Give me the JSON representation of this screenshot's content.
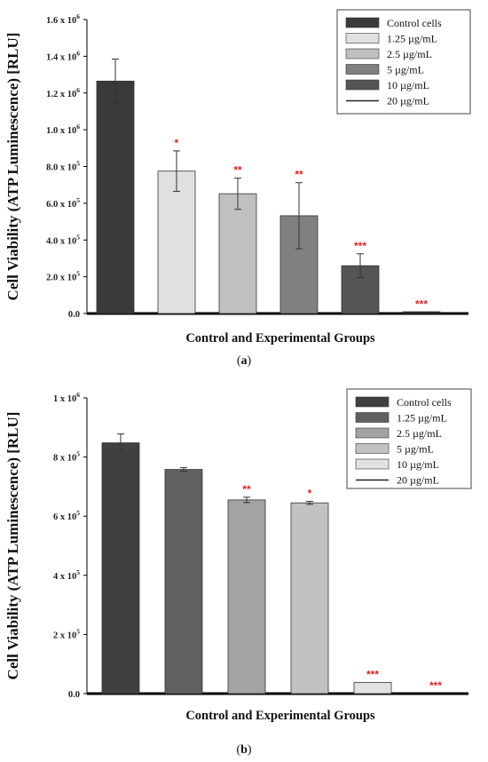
{
  "chart_data": [
    {
      "type": "bar",
      "panel": "a",
      "xlabel": "Control and Experimental Groups",
      "ylabel": "Cell Viability (ATP Luminescence) [RLU]",
      "ylim": [
        0,
        1600000
      ],
      "yticks": [
        {
          "value": 0,
          "label": "0.0"
        },
        {
          "value": 200000,
          "label": "2.0 x 10",
          "exp": "5"
        },
        {
          "value": 400000,
          "label": "4.0 x 10",
          "exp": "5"
        },
        {
          "value": 600000,
          "label": "6.0 x 10",
          "exp": "5"
        },
        {
          "value": 800000,
          "label": "8.0 x 10",
          "exp": "5"
        },
        {
          "value": 1000000,
          "label": "1.0 x 10",
          "exp": "6"
        },
        {
          "value": 1200000,
          "label": "1.2 x 10",
          "exp": "6"
        },
        {
          "value": 1400000,
          "label": "1.4 x 10",
          "exp": "6"
        },
        {
          "value": 1600000,
          "label": "1.6 x 10",
          "exp": "6"
        }
      ],
      "legend_position": "top-right",
      "categories": [
        "Control cells",
        "1.25 µg/mL",
        "2.5 µg/mL",
        "5 µg/mL",
        "10 µg/mL",
        "20 µg/mL"
      ],
      "values": [
        1265000,
        775000,
        652000,
        532000,
        260000,
        8000
      ],
      "errors": [
        120000,
        110000,
        85000,
        180000,
        65000,
        0
      ],
      "significance": [
        "",
        "*",
        "**",
        "**",
        "***",
        "***"
      ],
      "colors": [
        "#3a3a3a",
        "#e0e0e0",
        "#c0c0c0",
        "#808080",
        "#555555",
        "#222222"
      ]
    },
    {
      "type": "bar",
      "panel": "b",
      "xlabel": "Control and Experimental Groups",
      "ylabel": "Cell Viability (ATP Luminescence) [RLU]",
      "ylim": [
        0,
        1000000
      ],
      "yticks": [
        {
          "value": 0,
          "label": "0.0"
        },
        {
          "value": 200000,
          "label": "2 x 10",
          "exp": "5"
        },
        {
          "value": 400000,
          "label": "4 x 10",
          "exp": "5"
        },
        {
          "value": 600000,
          "label": "6 x 10",
          "exp": "5"
        },
        {
          "value": 800000,
          "label": "8 x 10",
          "exp": "5"
        },
        {
          "value": 1000000,
          "label": "1 x 10",
          "exp": "6"
        }
      ],
      "legend_position": "top-right",
      "categories": [
        "Control cells",
        "1.25 µg/mL",
        "2.5 µg/mL",
        "5 µg/mL",
        "10 µg/mL",
        "20 µg/mL"
      ],
      "values": [
        848000,
        758000,
        655000,
        645000,
        38000,
        0
      ],
      "errors": [
        30000,
        6000,
        9000,
        5000,
        0,
        0
      ],
      "significance": [
        "",
        "",
        "**",
        "*",
        "***",
        "***"
      ],
      "colors": [
        "#404040",
        "#606060",
        "#a3a3a3",
        "#c2c2c2",
        "#e2e2e2",
        "#222222"
      ]
    }
  ]
}
